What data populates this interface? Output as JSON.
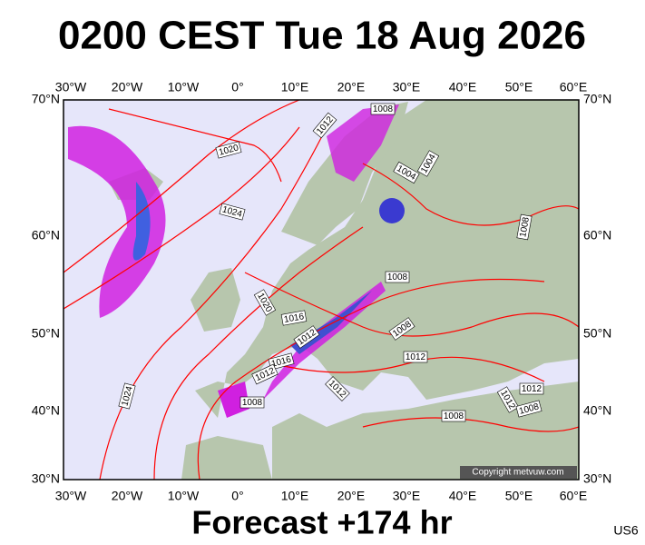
{
  "header": {
    "title": "0200 CEST Tue 18 Aug 2026"
  },
  "map": {
    "lon_labels": [
      "30°W",
      "20°W",
      "10°W",
      "0°",
      "10°E",
      "20°E",
      "30°E",
      "40°E",
      "50°E",
      "60°E"
    ],
    "lat_labels": [
      "70°N",
      "60°N",
      "50°N",
      "40°N",
      "30°N"
    ],
    "isobar_labels": [
      "1012",
      "1008",
      "1020",
      "1024",
      "1004",
      "1004",
      "1008",
      "1008",
      "1020",
      "1016",
      "1012",
      "1008",
      "1016",
      "1012",
      "1012",
      "1024",
      "1008",
      "1012",
      "1008",
      "1012",
      "1012",
      "1008"
    ],
    "copyright": "Copyright metvuw.com"
  },
  "footer": {
    "forecast": "Forecast +174 hr",
    "code": "US6"
  }
}
